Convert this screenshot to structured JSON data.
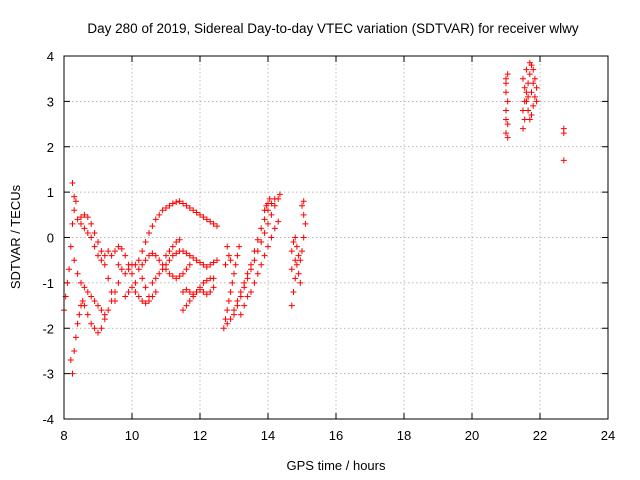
{
  "chart_data": {
    "type": "scatter",
    "title": "Day 280 of 2019, Sidereal Day-to-day VTEC variation (SDTVAR) for receiver wlwy",
    "xlabel": "GPS time / hours",
    "ylabel": "SDTVAR / TECUs",
    "xlim": [
      8,
      24
    ],
    "ylim": [
      -4,
      4
    ],
    "xticks": [
      8,
      10,
      12,
      14,
      16,
      18,
      20,
      22,
      24
    ],
    "yticks": [
      -4,
      -3,
      -2,
      -1,
      0,
      1,
      2,
      3,
      4
    ],
    "grid": true,
    "marker": "plus",
    "color": "#ff0000",
    "series": [
      {
        "name": "SDTVAR",
        "points": [
          [
            8.0,
            -1.6
          ],
          [
            8.05,
            -1.3
          ],
          [
            8.1,
            -1.0
          ],
          [
            8.15,
            -0.7
          ],
          [
            8.2,
            -0.2
          ],
          [
            8.25,
            0.3
          ],
          [
            8.3,
            0.6
          ],
          [
            8.35,
            0.8
          ],
          [
            8.25,
            1.2
          ],
          [
            8.3,
            0.9
          ],
          [
            8.2,
            -2.7
          ],
          [
            8.25,
            -3.0
          ],
          [
            8.3,
            -2.5
          ],
          [
            8.35,
            -2.2
          ],
          [
            8.4,
            -1.9
          ],
          [
            8.45,
            -1.7
          ],
          [
            8.5,
            -1.5
          ],
          [
            8.55,
            -1.4
          ],
          [
            8.3,
            -0.5
          ],
          [
            8.4,
            -0.8
          ],
          [
            8.5,
            -1.0
          ],
          [
            8.6,
            -1.1
          ],
          [
            8.7,
            -1.2
          ],
          [
            8.8,
            -1.3
          ],
          [
            8.9,
            -1.4
          ],
          [
            9.0,
            -1.5
          ],
          [
            9.1,
            -1.6
          ],
          [
            9.2,
            -1.7
          ],
          [
            8.4,
            0.4
          ],
          [
            8.5,
            0.3
          ],
          [
            8.6,
            0.2
          ],
          [
            8.7,
            0.1
          ],
          [
            8.8,
            0.0
          ],
          [
            8.9,
            -0.2
          ],
          [
            9.0,
            -0.4
          ],
          [
            9.1,
            -0.5
          ],
          [
            9.2,
            -0.4
          ],
          [
            9.3,
            -0.3
          ],
          [
            8.5,
            0.45
          ],
          [
            8.6,
            0.5
          ],
          [
            8.7,
            0.45
          ],
          [
            8.8,
            0.3
          ],
          [
            8.9,
            0.1
          ],
          [
            9.0,
            -0.1
          ],
          [
            9.1,
            -0.3
          ],
          [
            9.2,
            -0.6
          ],
          [
            9.3,
            -0.9
          ],
          [
            9.4,
            -1.2
          ],
          [
            9.5,
            -1.4
          ],
          [
            8.6,
            -1.5
          ],
          [
            8.7,
            -1.7
          ],
          [
            8.8,
            -1.9
          ],
          [
            8.9,
            -2.0
          ],
          [
            9.0,
            -2.1
          ],
          [
            9.1,
            -2.0
          ],
          [
            9.2,
            -1.8
          ],
          [
            9.3,
            -1.6
          ],
          [
            9.4,
            -1.4
          ],
          [
            9.5,
            -1.2
          ],
          [
            9.6,
            -1.0
          ],
          [
            9.4,
            -0.4
          ],
          [
            9.5,
            -0.3
          ],
          [
            9.6,
            -0.2
          ],
          [
            9.7,
            -0.25
          ],
          [
            9.8,
            -0.4
          ],
          [
            9.9,
            -0.6
          ],
          [
            10.0,
            -0.8
          ],
          [
            10.1,
            -1.0
          ],
          [
            9.6,
            -0.6
          ],
          [
            9.7,
            -0.7
          ],
          [
            9.8,
            -0.8
          ],
          [
            9.9,
            -0.7
          ],
          [
            10.0,
            -0.6
          ],
          [
            10.1,
            -0.6
          ],
          [
            10.2,
            -0.7
          ],
          [
            10.3,
            -0.9
          ],
          [
            10.4,
            -1.1
          ],
          [
            10.5,
            -1.3
          ],
          [
            9.8,
            -1.3
          ],
          [
            9.9,
            -1.2
          ],
          [
            10.0,
            -1.1
          ],
          [
            10.1,
            -1.2
          ],
          [
            10.2,
            -1.3
          ],
          [
            10.3,
            -1.4
          ],
          [
            10.4,
            -1.45
          ],
          [
            10.5,
            -1.4
          ],
          [
            10.6,
            -1.3
          ],
          [
            10.7,
            -1.2
          ],
          [
            10.2,
            -0.5
          ],
          [
            10.3,
            -0.3
          ],
          [
            10.4,
            -0.1
          ],
          [
            10.5,
            0.1
          ],
          [
            10.6,
            0.25
          ],
          [
            10.7,
            0.4
          ],
          [
            10.8,
            0.5
          ],
          [
            10.9,
            0.6
          ],
          [
            11.0,
            0.65
          ],
          [
            11.1,
            0.7
          ],
          [
            11.2,
            0.75
          ],
          [
            11.3,
            0.78
          ],
          [
            11.4,
            0.8
          ],
          [
            11.5,
            0.75
          ],
          [
            11.6,
            0.7
          ],
          [
            11.7,
            0.65
          ],
          [
            11.8,
            0.6
          ],
          [
            11.9,
            0.55
          ],
          [
            12.0,
            0.5
          ],
          [
            12.1,
            0.45
          ],
          [
            12.2,
            0.4
          ],
          [
            12.3,
            0.35
          ],
          [
            12.4,
            0.3
          ],
          [
            12.5,
            0.25
          ],
          [
            10.3,
            -0.6
          ],
          [
            10.4,
            -0.5
          ],
          [
            10.5,
            -0.4
          ],
          [
            10.6,
            -0.35
          ],
          [
            10.7,
            -0.4
          ],
          [
            10.8,
            -0.5
          ],
          [
            10.9,
            -0.6
          ],
          [
            11.0,
            -0.7
          ],
          [
            11.1,
            -0.8
          ],
          [
            11.2,
            -0.85
          ],
          [
            11.3,
            -0.9
          ],
          [
            11.4,
            -0.85
          ],
          [
            11.5,
            -0.8
          ],
          [
            11.6,
            -0.7
          ],
          [
            11.7,
            -0.6
          ],
          [
            10.6,
            -1.0
          ],
          [
            10.7,
            -0.9
          ],
          [
            10.8,
            -0.8
          ],
          [
            10.9,
            -0.7
          ],
          [
            11.0,
            -0.6
          ],
          [
            11.1,
            -0.5
          ],
          [
            11.2,
            -0.4
          ],
          [
            11.3,
            -0.35
          ],
          [
            11.4,
            -0.3
          ],
          [
            11.5,
            -0.3
          ],
          [
            11.6,
            -0.35
          ],
          [
            11.7,
            -0.4
          ],
          [
            11.8,
            -0.45
          ],
          [
            11.9,
            -0.5
          ],
          [
            12.0,
            -0.55
          ],
          [
            12.1,
            -0.6
          ],
          [
            12.2,
            -0.65
          ],
          [
            12.3,
            -0.6
          ],
          [
            12.4,
            -0.55
          ],
          [
            12.5,
            -0.5
          ],
          [
            11.0,
            -0.4
          ],
          [
            11.1,
            -0.3
          ],
          [
            11.2,
            -0.2
          ],
          [
            11.3,
            -0.1
          ],
          [
            11.4,
            -0.05
          ],
          [
            11.5,
            -1.6
          ],
          [
            11.6,
            -1.5
          ],
          [
            11.7,
            -1.4
          ],
          [
            11.8,
            -1.3
          ],
          [
            11.9,
            -1.2
          ],
          [
            12.0,
            -1.1
          ],
          [
            12.1,
            -1.0
          ],
          [
            12.2,
            -0.95
          ],
          [
            12.3,
            -0.9
          ],
          [
            12.4,
            -0.9
          ],
          [
            11.5,
            -1.2
          ],
          [
            11.6,
            -1.15
          ],
          [
            11.7,
            -1.2
          ],
          [
            11.8,
            -1.25
          ],
          [
            11.9,
            -1.2
          ],
          [
            12.0,
            -1.15
          ],
          [
            12.1,
            -1.2
          ],
          [
            12.2,
            -1.25
          ],
          [
            12.3,
            -1.2
          ],
          [
            12.4,
            -1.1
          ],
          [
            12.7,
            -2.0
          ],
          [
            12.75,
            -1.8
          ],
          [
            12.8,
            -1.6
          ],
          [
            12.85,
            -1.4
          ],
          [
            12.9,
            -1.2
          ],
          [
            12.95,
            -1.0
          ],
          [
            13.0,
            -0.8
          ],
          [
            13.05,
            -0.6
          ],
          [
            13.1,
            -0.4
          ],
          [
            13.15,
            -0.2
          ],
          [
            12.8,
            -0.2
          ],
          [
            12.85,
            -0.4
          ],
          [
            12.9,
            -0.5
          ],
          [
            12.75,
            -0.6
          ],
          [
            12.8,
            -1.9
          ],
          [
            12.9,
            -1.8
          ],
          [
            13.0,
            -1.7
          ],
          [
            13.1,
            -1.5
          ],
          [
            13.2,
            -1.3
          ],
          [
            13.3,
            -1.1
          ],
          [
            13.4,
            -0.9
          ],
          [
            13.5,
            -0.7
          ],
          [
            13.6,
            -0.5
          ],
          [
            13.7,
            -0.3
          ],
          [
            13.8,
            -0.1
          ],
          [
            13.9,
            0.1
          ],
          [
            14.0,
            0.3
          ],
          [
            14.1,
            0.5
          ],
          [
            14.2,
            0.7
          ],
          [
            14.3,
            0.85
          ],
          [
            14.35,
            0.95
          ],
          [
            13.0,
            -1.6
          ],
          [
            13.1,
            -1.4
          ],
          [
            13.2,
            -1.2
          ],
          [
            13.3,
            -1.0
          ],
          [
            13.4,
            -0.8
          ],
          [
            13.5,
            -0.6
          ],
          [
            13.6,
            -0.3
          ],
          [
            13.7,
            -0.05
          ],
          [
            13.8,
            0.2
          ],
          [
            13.9,
            0.4
          ],
          [
            14.0,
            0.6
          ],
          [
            14.1,
            0.75
          ],
          [
            14.2,
            0.85
          ],
          [
            13.2,
            -1.7
          ],
          [
            13.3,
            -1.5
          ],
          [
            13.4,
            -1.3
          ],
          [
            13.5,
            -1.2
          ],
          [
            13.6,
            -1.0
          ],
          [
            13.7,
            -0.8
          ],
          [
            13.8,
            -0.6
          ],
          [
            13.9,
            -0.4
          ],
          [
            14.0,
            -0.2
          ],
          [
            14.1,
            0.0
          ],
          [
            14.2,
            0.2
          ],
          [
            14.3,
            0.35
          ],
          [
            13.9,
            0.6
          ],
          [
            14.0,
            0.75
          ],
          [
            14.05,
            0.85
          ],
          [
            13.95,
            0.7
          ],
          [
            14.7,
            -1.5
          ],
          [
            14.75,
            -1.2
          ],
          [
            14.8,
            -0.9
          ],
          [
            14.85,
            -0.6
          ],
          [
            14.7,
            -0.3
          ],
          [
            14.75,
            -0.1
          ],
          [
            14.8,
            0.0
          ],
          [
            14.85,
            -0.2
          ],
          [
            14.9,
            -0.4
          ],
          [
            14.95,
            -0.5
          ],
          [
            15.0,
            -0.3
          ],
          [
            15.05,
            0.0
          ],
          [
            15.1,
            0.3
          ],
          [
            15.05,
            0.5
          ],
          [
            15.0,
            0.7
          ],
          [
            15.05,
            0.8
          ],
          [
            14.9,
            -0.8
          ],
          [
            14.95,
            -1.0
          ],
          [
            14.8,
            -0.5
          ],
          [
            14.7,
            -0.7
          ],
          [
            21.0,
            3.5
          ],
          [
            21.0,
            3.2
          ],
          [
            21.05,
            3.0
          ],
          [
            21.0,
            2.8
          ],
          [
            21.05,
            2.5
          ],
          [
            21.0,
            2.3
          ],
          [
            21.05,
            2.2
          ],
          [
            21.0,
            3.4
          ],
          [
            21.05,
            3.6
          ],
          [
            21.0,
            2.6
          ],
          [
            21.5,
            2.8
          ],
          [
            21.55,
            3.0
          ],
          [
            21.6,
            3.2
          ],
          [
            21.65,
            3.4
          ],
          [
            21.7,
            3.6
          ],
          [
            21.75,
            3.8
          ],
          [
            21.8,
            3.7
          ],
          [
            21.85,
            3.5
          ],
          [
            21.9,
            3.3
          ],
          [
            21.85,
            3.1
          ],
          [
            21.8,
            2.9
          ],
          [
            21.75,
            2.7
          ],
          [
            21.7,
            2.6
          ],
          [
            21.65,
            2.8
          ],
          [
            21.6,
            3.0
          ],
          [
            21.55,
            3.3
          ],
          [
            21.5,
            3.5
          ],
          [
            21.6,
            3.7
          ],
          [
            21.7,
            3.85
          ],
          [
            21.8,
            3.4
          ],
          [
            21.9,
            3.0
          ],
          [
            21.55,
            2.6
          ],
          [
            21.5,
            2.4
          ],
          [
            21.65,
            3.1
          ],
          [
            21.75,
            3.2
          ],
          [
            22.7,
            2.4
          ],
          [
            22.7,
            2.3
          ],
          [
            22.7,
            1.7
          ]
        ]
      }
    ]
  }
}
